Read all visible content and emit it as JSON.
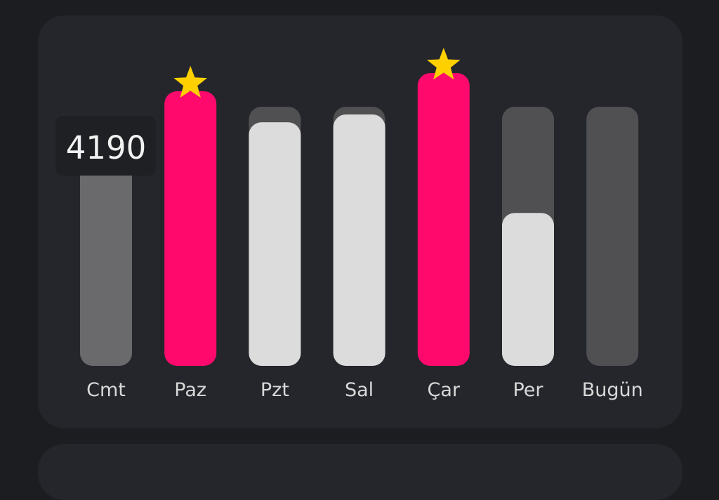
{
  "chart_data": {
    "type": "bar",
    "categories": [
      "Cmt",
      "Paz",
      "Pzt",
      "Sal",
      "Çar",
      "Per",
      "Bugün"
    ],
    "values": [
      4190,
      5300,
      4700,
      4850,
      5650,
      2950,
      0
    ],
    "goal": 5000,
    "ylim": [
      0,
      5650
    ],
    "highlighted": [
      "Paz",
      "Çar"
    ],
    "selected": "Cmt",
    "tooltip": "4190",
    "title": "",
    "xlabel": "",
    "ylabel": ""
  },
  "colors": {
    "goal_met": "#ff0a6c",
    "progress": "#dcdcdc",
    "selected": "#6a6a6c",
    "track": "#505052",
    "star": "#ffd000",
    "label": "#d8d8d8",
    "tooltip_bg": "#1f2024",
    "tooltip_text": "#f2f2f2"
  },
  "icons": {
    "goal_star": "star-icon"
  }
}
